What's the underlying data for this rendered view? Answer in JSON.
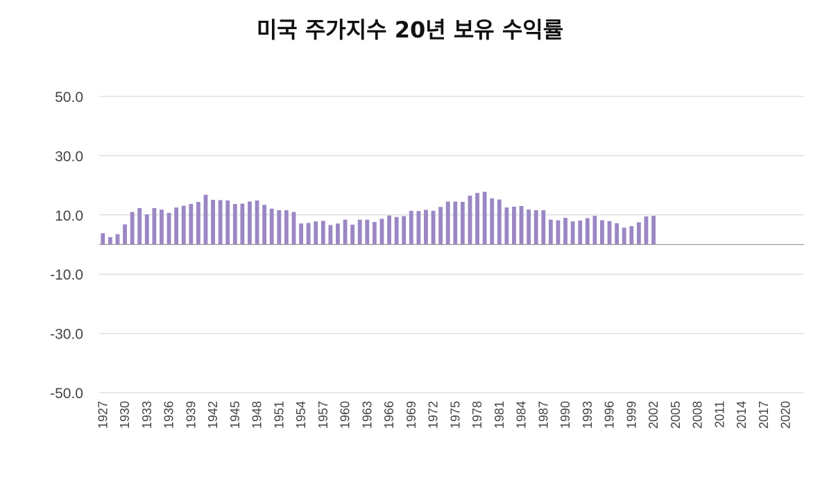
{
  "chart_data": {
    "type": "bar",
    "title": "미국 주가지수 20년 보유 수익률",
    "xlabel": "",
    "ylabel": "",
    "ylim": [
      -50,
      50
    ],
    "y_ticks": [
      "50.0",
      "30.0",
      "10.0",
      "-10.0",
      "-30.0",
      "-50.0"
    ],
    "y_tick_values": [
      50,
      30,
      10,
      -10,
      -30,
      -50
    ],
    "grid": true,
    "legend": "none",
    "bar_color": "#9b87c4",
    "x_tick_labels": [
      "1927",
      "1930",
      "1933",
      "1936",
      "1939",
      "1942",
      "1945",
      "1948",
      "1951",
      "1954",
      "1957",
      "1960",
      "1963",
      "1966",
      "1969",
      "1972",
      "1975",
      "1978",
      "1981",
      "1984",
      "1987",
      "1990",
      "1993",
      "1996",
      "1999",
      "2002",
      "2005",
      "2008",
      "2011",
      "2014",
      "2017",
      "2020"
    ],
    "categories": [
      1927,
      1928,
      1929,
      1930,
      1931,
      1932,
      1933,
      1934,
      1935,
      1936,
      1937,
      1938,
      1939,
      1940,
      1941,
      1942,
      1943,
      1944,
      1945,
      1946,
      1947,
      1948,
      1949,
      1950,
      1951,
      1952,
      1953,
      1954,
      1955,
      1956,
      1957,
      1958,
      1959,
      1960,
      1961,
      1962,
      1963,
      1964,
      1965,
      1966,
      1967,
      1968,
      1969,
      1970,
      1971,
      1972,
      1973,
      1974,
      1975,
      1976,
      1977,
      1978,
      1979,
      1980,
      1981,
      1982,
      1983,
      1984,
      1985,
      1986,
      1987,
      1988,
      1989,
      1990,
      1991,
      1992,
      1993,
      1994,
      1995,
      1996,
      1997,
      1998,
      1999,
      2000,
      2001,
      2002,
      2003,
      2004,
      2005,
      2006,
      2007,
      2008,
      2009,
      2010,
      2011,
      2012,
      2013,
      2014,
      2015,
      2016,
      2017,
      2018,
      2019,
      2020,
      2021,
      2022
    ],
    "values": [
      3.8,
      2.5,
      3.5,
      6.8,
      11.0,
      12.3,
      10.2,
      12.3,
      11.8,
      10.7,
      12.5,
      13.1,
      13.7,
      14.4,
      16.8,
      15.1,
      15.0,
      14.9,
      13.7,
      13.8,
      14.5,
      14.9,
      13.4,
      12.1,
      11.6,
      11.6,
      11.0,
      7.1,
      7.3,
      7.8,
      8.0,
      6.6,
      7.1,
      8.4,
      6.7,
      8.4,
      8.4,
      7.6,
      8.7,
      9.8,
      9.3,
      9.6,
      11.4,
      11.3,
      11.7,
      11.4,
      12.7,
      14.5,
      14.5,
      14.4,
      16.5,
      17.4,
      17.8,
      15.6,
      15.2,
      12.5,
      12.8,
      13.0,
      11.8,
      11.6,
      11.6,
      8.4,
      8.2,
      9.0,
      7.8,
      8.1,
      8.9,
      9.7,
      8.2,
      7.9,
      7.2,
      5.7,
      6.2,
      7.5,
      9.5,
      9.7,
      null,
      null,
      null,
      null,
      null,
      null,
      null,
      null,
      null,
      null,
      null,
      null,
      null,
      null,
      null,
      null,
      null,
      null,
      null,
      null
    ]
  }
}
